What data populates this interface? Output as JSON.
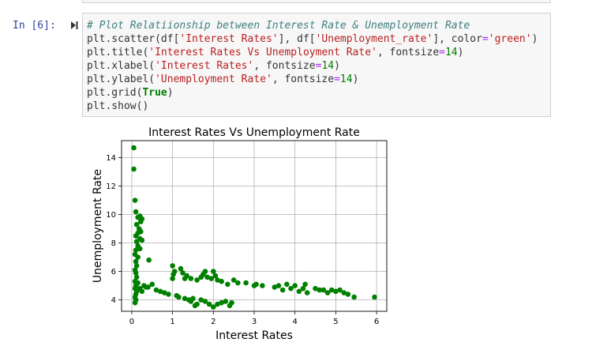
{
  "prompt": "In [6]:",
  "code": {
    "comment": "# Plot Relatiionship between Interest Rate & Unemployment Rate",
    "line2": {
      "a": "plt.scatter(df[",
      "s1": "'Interest Rates'",
      "b": "], df[",
      "s2": "'Unemployment_rate'",
      "c": "], color",
      "eq": "=",
      "s3": "'green'",
      "d": ")"
    },
    "line3": {
      "a": "plt.title(",
      "s1": "'Interest Rates Vs Unemployment Rate'",
      "b": ", fontsize",
      "eq": "=",
      "n": "14",
      "c": ")"
    },
    "line4": {
      "a": "plt.xlabel(",
      "s1": "'Interest Rates'",
      "b": ", fontsize",
      "eq": "=",
      "n": "14",
      "c": ")"
    },
    "line5": {
      "a": "plt.ylabel(",
      "s1": "'Unemployment Rate'",
      "b": ", fontsize",
      "eq": "=",
      "n": "14",
      "c": ")"
    },
    "line6": {
      "a": "plt.grid(",
      "kw": "True",
      "c": ")"
    },
    "line7": "plt.show()"
  },
  "colors": {
    "marker": "#008000",
    "prompt": "#303f9f",
    "cell_bg": "#f7f7f7",
    "grid": "#b0b0b0"
  },
  "icons": {
    "run": "step-forward-icon"
  },
  "chart_data": {
    "type": "scatter",
    "title": "Interest Rates Vs Unemployment Rate",
    "xlabel": "Interest Rates",
    "ylabel": "Unemployment Rate",
    "xlim": [
      -0.25,
      6.25
    ],
    "ylim": [
      3.2,
      15.2
    ],
    "xticks": [
      0,
      1,
      2,
      3,
      4,
      5,
      6
    ],
    "yticks": [
      4,
      6,
      8,
      10,
      12,
      14
    ],
    "grid": true,
    "color": "green",
    "points": [
      [
        0.05,
        14.7
      ],
      [
        0.05,
        13.2
      ],
      [
        0.08,
        11.0
      ],
      [
        0.1,
        10.2
      ],
      [
        0.15,
        9.8
      ],
      [
        0.2,
        9.9
      ],
      [
        0.22,
        9.5
      ],
      [
        0.25,
        9.7
      ],
      [
        0.12,
        9.3
      ],
      [
        0.18,
        9.0
      ],
      [
        0.15,
        8.7
      ],
      [
        0.22,
        8.8
      ],
      [
        0.1,
        8.5
      ],
      [
        0.2,
        8.3
      ],
      [
        0.12,
        8.1
      ],
      [
        0.25,
        8.2
      ],
      [
        0.15,
        7.8
      ],
      [
        0.1,
        7.5
      ],
      [
        0.2,
        7.6
      ],
      [
        0.08,
        7.2
      ],
      [
        0.15,
        7.0
      ],
      [
        0.1,
        6.7
      ],
      [
        0.12,
        6.4
      ],
      [
        0.08,
        6.1
      ],
      [
        0.1,
        5.9
      ],
      [
        0.12,
        5.6
      ],
      [
        0.08,
        5.3
      ],
      [
        0.15,
        5.2
      ],
      [
        0.1,
        5.0
      ],
      [
        0.08,
        4.8
      ],
      [
        0.12,
        4.6
      ],
      [
        0.1,
        4.4
      ],
      [
        0.08,
        4.2
      ],
      [
        0.1,
        4.0
      ],
      [
        0.08,
        3.8
      ],
      [
        0.2,
        4.8
      ],
      [
        0.25,
        4.6
      ],
      [
        0.3,
        5.0
      ],
      [
        0.4,
        4.9
      ],
      [
        0.5,
        5.1
      ],
      [
        0.6,
        4.7
      ],
      [
        0.7,
        4.6
      ],
      [
        0.8,
        4.5
      ],
      [
        0.42,
        6.8
      ],
      [
        0.35,
        4.9
      ],
      [
        0.9,
        4.4
      ],
      [
        1.0,
        6.4
      ],
      [
        1.02,
        5.8
      ],
      [
        1.05,
        6.0
      ],
      [
        1.0,
        5.5
      ],
      [
        1.1,
        4.3
      ],
      [
        1.15,
        4.2
      ],
      [
        1.2,
        6.2
      ],
      [
        1.25,
        5.9
      ],
      [
        1.3,
        5.5
      ],
      [
        1.35,
        5.7
      ],
      [
        1.3,
        4.1
      ],
      [
        1.4,
        4.0
      ],
      [
        1.5,
        4.1
      ],
      [
        1.45,
        3.9
      ],
      [
        1.55,
        3.6
      ],
      [
        1.6,
        3.7
      ],
      [
        1.45,
        5.5
      ],
      [
        1.6,
        5.4
      ],
      [
        1.7,
        5.6
      ],
      [
        1.75,
        5.8
      ],
      [
        1.8,
        6.0
      ],
      [
        1.85,
        5.6
      ],
      [
        1.7,
        4.0
      ],
      [
        1.8,
        3.9
      ],
      [
        1.9,
        3.7
      ],
      [
        2.0,
        3.5
      ],
      [
        1.95,
        5.5
      ],
      [
        2.0,
        6.0
      ],
      [
        2.05,
        5.7
      ],
      [
        2.1,
        5.4
      ],
      [
        2.2,
        5.3
      ],
      [
        2.1,
        3.7
      ],
      [
        2.2,
        3.8
      ],
      [
        2.3,
        3.9
      ],
      [
        2.35,
        5.1
      ],
      [
        2.4,
        3.6
      ],
      [
        2.45,
        3.8
      ],
      [
        2.5,
        5.4
      ],
      [
        2.6,
        5.2
      ],
      [
        2.8,
        5.2
      ],
      [
        3.0,
        5.0
      ],
      [
        3.05,
        5.1
      ],
      [
        3.2,
        5.0
      ],
      [
        3.5,
        4.9
      ],
      [
        3.6,
        5.0
      ],
      [
        3.7,
        4.7
      ],
      [
        3.8,
        5.1
      ],
      [
        3.9,
        4.8
      ],
      [
        4.0,
        5.0
      ],
      [
        4.1,
        4.6
      ],
      [
        4.2,
        4.8
      ],
      [
        4.25,
        5.1
      ],
      [
        4.3,
        4.5
      ],
      [
        4.5,
        4.8
      ],
      [
        4.6,
        4.7
      ],
      [
        4.7,
        4.7
      ],
      [
        4.8,
        4.5
      ],
      [
        4.9,
        4.7
      ],
      [
        5.0,
        4.6
      ],
      [
        5.1,
        4.7
      ],
      [
        5.2,
        4.5
      ],
      [
        5.3,
        4.4
      ],
      [
        5.45,
        4.2
      ],
      [
        5.95,
        4.2
      ]
    ]
  }
}
